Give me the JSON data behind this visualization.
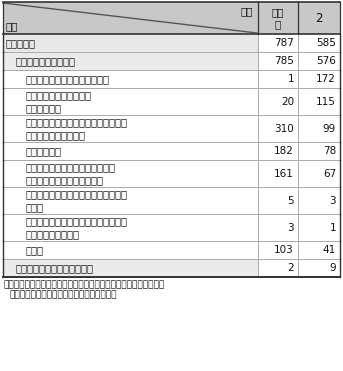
{
  "header_top_right": "年次",
  "header_bottom_left": "区分",
  "col1_header": "令和\n元",
  "col2_header": "2",
  "rows": [
    {
      "label": "合計（件）",
      "v1": "787",
      "v2": "585",
      "level": 0,
      "multiline": false
    },
    {
      "label": "識別符号窃用型（注）",
      "v1": "785",
      "v2": "576",
      "level": 1,
      "multiline": false
    },
    {
      "label": "フィッシングサイトにより入手",
      "v1": "1",
      "v2": "172",
      "level": 2,
      "multiline": false
    },
    {
      "label": "利用権者からの聴き出し\n又はのぞき見",
      "v1": "20",
      "v2": "115",
      "level": 2,
      "multiline": true
    },
    {
      "label": "利用権者のパスワードの設定・管理の\n甘さにつけ込んで入手",
      "v1": "310",
      "v2": "99",
      "level": 2,
      "multiline": true
    },
    {
      "label": "他人から入手",
      "v1": "182",
      "v2": "78",
      "level": 2,
      "multiline": false
    },
    {
      "label": "識別符号を知り得る立場にあった\n元従業員や知人等による犯行",
      "v1": "161",
      "v2": "67",
      "level": 2,
      "multiline": true
    },
    {
      "label": "スパイウェア等のプログラムを使用し\nて入手",
      "v1": "5",
      "v2": "3",
      "level": 2,
      "multiline": true
    },
    {
      "label": "インターネット上に流出・公開されて\nいた識別符号を入手",
      "v1": "3",
      "v2": "1",
      "level": 2,
      "multiline": true
    },
    {
      "label": "その他",
      "v1": "103",
      "v2": "41",
      "level": 2,
      "multiline": false
    },
    {
      "label": "セキュリティ・ホール攻撃型",
      "v1": "2",
      "v2": "9",
      "level": 1,
      "multiline": false
    }
  ],
  "footnote_line1": "注：アクセス制御されているサーバに、ネットワークを通じて、他",
  "footnote_line2": "人の識別符号を入力して不正に利用する行為",
  "bg_header": "#c8c8c8",
  "bg_level0": "#e8e8e8",
  "bg_level1": "#ebebeb",
  "bg_level2": "#ffffff",
  "border_dark": "#333333",
  "border_light": "#aaaaaa",
  "text_color": "#111111"
}
